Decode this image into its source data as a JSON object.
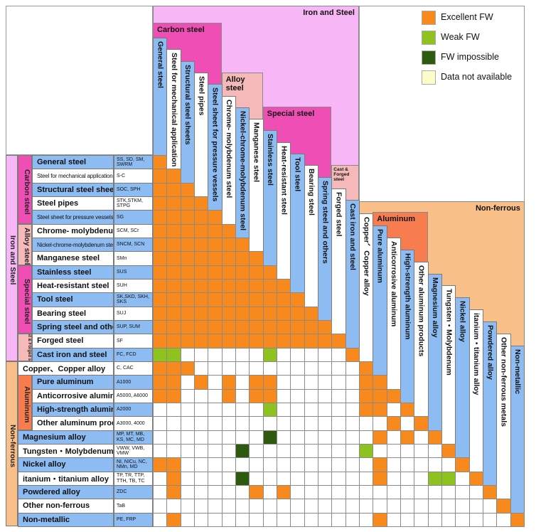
{
  "colors": {
    "excellent": "#f7891d",
    "weak": "#8dc21f",
    "impossible": "#2e5a10",
    "na": "#fffccc",
    "blue": "#8dbcf2",
    "white": "#ffffff",
    "iron_steel": "#f7b6f5",
    "carbon_special": "#ef4fb5",
    "alloy_cast": "#f6b9b9",
    "nonferrous": "#f9bf89",
    "aluminum": "#f77d4e"
  },
  "legend": [
    {
      "label": "Excellent FW",
      "key": "excellent"
    },
    {
      "label": "Weak FW",
      "key": "weak"
    },
    {
      "label": "FW impossible",
      "key": "impossible"
    },
    {
      "label": "Data not available",
      "key": "na"
    }
  ],
  "groups": {
    "iron_steel": "Iron and Steel",
    "carbon": "Carbon steel",
    "alloy": "Alloy steel",
    "special": "Special steel",
    "cast_forged": "Cast & Forged steel",
    "nonferrous": "Non-ferrous",
    "aluminum": "Aluminum"
  },
  "rows": [
    {
      "name": "General steel",
      "code": "SS, SD, SM, SWRM"
    },
    {
      "name": "Steel for mechanical application",
      "code": "S-C"
    },
    {
      "name": "Structural steel sheets",
      "code": "SOC, SPH"
    },
    {
      "name": "Steel pipes",
      "code": "STK,STKM, STPG"
    },
    {
      "name": "Steel sheet for pressure vessels",
      "code": "SG"
    },
    {
      "name": "Chrome- molybdenum steel",
      "code": "SCM, SCr"
    },
    {
      "name": "Nickel-chrome-molybdenum steel",
      "code": "SNCM, SCN"
    },
    {
      "name": "Manganese steel",
      "code": "SMn"
    },
    {
      "name": "Stainless steel",
      "code": "SUS"
    },
    {
      "name": "Heat-resistant steel",
      "code": "SUH"
    },
    {
      "name": "Tool steel",
      "code": "SK,SKD, SKH, SKS"
    },
    {
      "name": "Bearing steel",
      "code": "SUJ"
    },
    {
      "name": "Spring steel and others",
      "code": "SUP, SUM"
    },
    {
      "name": "Forged steel",
      "code": "SF"
    },
    {
      "name": "Cast iron and steel",
      "code": "FC, FCD"
    },
    {
      "name": "Copper、Copper alloy",
      "code": "C, CAC"
    },
    {
      "name": "Pure aluminum",
      "code": "A1000"
    },
    {
      "name": "Anticorrosive aluminum",
      "code": "A5000, A6000"
    },
    {
      "name": "High-strength aluminum",
      "code": "A2000"
    },
    {
      "name": "Other aluminum products",
      "code": "A3000, 4000"
    },
    {
      "name": "Magnesium alloy",
      "code": "MP, MT, MB, KS, MC, MD"
    },
    {
      "name": "Tungsten・Molybdenum",
      "code": "VWW, VWB, VMW"
    },
    {
      "name": "Nickel alloy",
      "code": "NI, NICu, NC, NMn, MD"
    },
    {
      "name": "itanium・titanium alloy",
      "code": "TP, TR, TTP, TTH, TB, TC"
    },
    {
      "name": "Powdered alloy",
      "code": "ZDC"
    },
    {
      "name": "Other non-ferrous",
      "code": "TaB"
    },
    {
      "name": "Non-metallic",
      "code": "PE, FRP"
    }
  ],
  "columns": [
    "General steel",
    "Steel for mechanical application",
    "Structural steel sheets",
    "Steel pipes",
    "Steel sheet for pressure vessels",
    "Chrome- molybdenum steel",
    "Nickel-chrome-molybdenum steel",
    "Manganese steel",
    "Stainless steel",
    "Heat-resistant steel",
    "Tool steel",
    "Bearing steel",
    "Spring steel and others",
    "Forged steel",
    "Cast iron and steel",
    "Copper、Copper alloy",
    "Pure aluminum",
    "Anticorrosive aluminum",
    "High-strength aluminum",
    "Other aluminum products",
    "Magnesium alloy",
    "Tungsten・Molybdenum",
    "Nickel alloy",
    "itanium・titanium alloy",
    "Powdered alloy",
    "Other non-ferrous metals",
    "Non-metallic"
  ],
  "matrix_key": {
    "E": "excellent",
    "W": "weak",
    "X": "impossible",
    ".": "blank"
  },
  "matrix": [
    "E",
    "EE",
    "EEE",
    "EEEE",
    "EEEEE",
    "EEEEEE",
    "EEEEEEE",
    "EEEEEEEE",
    "EEEEEEEEE",
    "EEEEEEEEEE",
    "EEEEEEEEEEE",
    "EEEEEEEEEEEE",
    "EEEEEEEEEEEEE",
    "EEEEEEEEEEEEEE",
    "WW......W.....E",
    "EEE............E",
    "EE.E.E.EE......EE",
    "EE...E.EE......EEE",
    "........W......EE.E",
    ".................E.E",
    "........X.......E.E.E",
    "......X........W.....E",
    "EE..............E.....E",
    ".E....X.........E...WW.E",
    ".E.....E.E..............E",
    ".........................E",
    ".E..............E.........E"
  ]
}
